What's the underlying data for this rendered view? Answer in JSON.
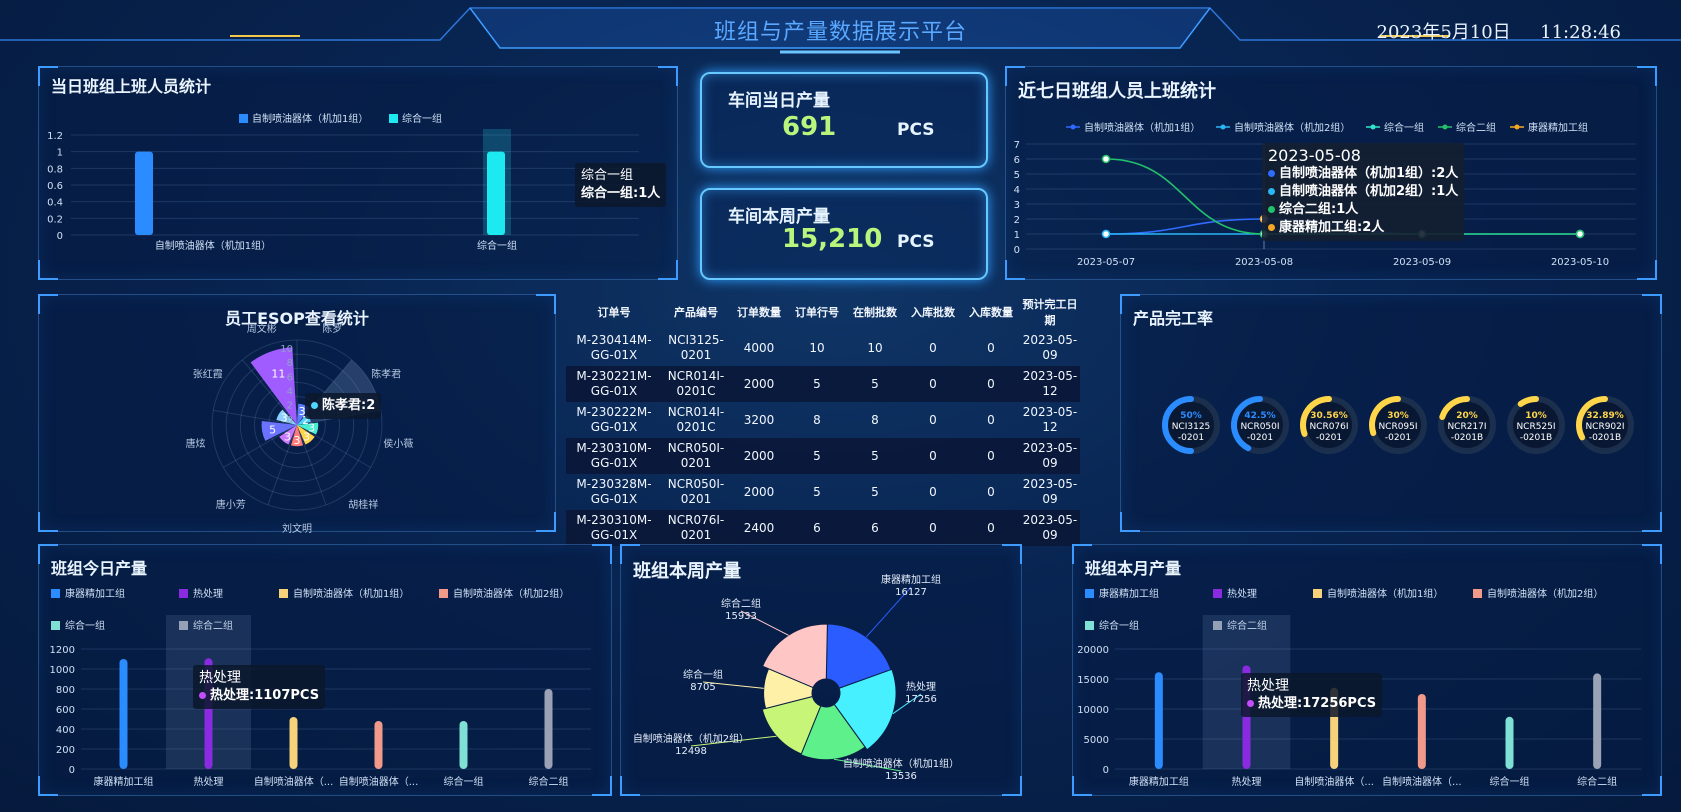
{
  "header": {
    "title": "班组与产量数据展示平台",
    "date": "2023年5月10日",
    "time": "11:28:46"
  },
  "attendance_today": {
    "title": "当日班组上班人员统计",
    "legend": [
      "自制喷油器体（机加1组）",
      "综合一组"
    ],
    "tooltip_title": "综合一组",
    "tooltip_line": "综合一组:1人",
    "chart_data": {
      "type": "bar",
      "categories": [
        "自制喷油器体（机加1组）",
        "综合一组"
      ],
      "series": [
        {
          "name": "自制喷油器体（机加1组）",
          "values": [
            1,
            null
          ]
        },
        {
          "name": "综合一组",
          "values": [
            null,
            1
          ]
        }
      ],
      "ylim": [
        0,
        1.2
      ],
      "yticks": [
        "0",
        "0.2",
        "0.4",
        "0.6",
        "0.8",
        "1",
        "1.2"
      ],
      "colors": [
        "#2a8cff",
        "#1de9f0"
      ]
    }
  },
  "kpi_today": {
    "label": "车间当日产量",
    "value": "691",
    "unit": "PCS"
  },
  "kpi_week": {
    "label": "车间本周产量",
    "value": "15,210",
    "unit": "PCS"
  },
  "attendance_7days": {
    "title": "近七日班组人员上班统计",
    "legend": [
      "自制喷油器体（机加1组）",
      "自制喷油器体（机加2组）",
      "综合一组",
      "综合二组",
      "康器精加工组"
    ],
    "tooltip_title": "2023-05-08",
    "tooltip_lines": [
      "自制喷油器体（机加1组）:2人",
      "自制喷油器体（机加2组）:1人",
      "综合二组:1人",
      "康器精加工组:2人"
    ],
    "chart_data": {
      "type": "line",
      "x": [
        "2023-05-07",
        "2023-05-08",
        "2023-05-09",
        "2023-05-10"
      ],
      "ylim": [
        0,
        7
      ],
      "yticks": [
        "0",
        "1",
        "2",
        "3",
        "4",
        "5",
        "6",
        "7"
      ],
      "series": [
        {
          "name": "自制喷油器体（机加1组）",
          "values": [
            1,
            2,
            1,
            1
          ],
          "color": "#2f6bff"
        },
        {
          "name": "自制喷油器体（机加2组）",
          "values": [
            1,
            1,
            1,
            1
          ],
          "color": "#29b6f6"
        },
        {
          "name": "综合一组",
          "values": [
            null,
            1,
            1,
            null
          ],
          "color": "#2ee6c9"
        },
        {
          "name": "综合二组",
          "values": [
            6,
            1,
            1,
            1
          ],
          "color": "#23c16b"
        },
        {
          "name": "康器精加工组",
          "values": [
            null,
            2,
            null,
            null
          ],
          "color": "#f5a623"
        }
      ]
    }
  },
  "esop": {
    "title": "员工ESOP查看统计",
    "tooltip": "陈孝君:2",
    "chart_data": {
      "type": "polar-bar",
      "categories": [
        "陈罗",
        "陈孝君",
        "侯小薇",
        "胡桂祥",
        "刘文明",
        "唐小芳",
        "唐炫",
        "张红霞",
        "周文彬"
      ],
      "values": [
        3,
        2,
        3,
        3,
        3,
        3,
        5,
        3,
        11
      ],
      "rticks": [
        "10",
        "8",
        "6",
        "4",
        "2",
        "0"
      ],
      "rmax": 12
    }
  },
  "orders": {
    "headers": [
      "订单号",
      "产品编号",
      "订单数量",
      "订单行号",
      "在制批数",
      "入库批数",
      "入库数量",
      "预计完工日期"
    ],
    "rows": [
      [
        "M-230414M-GG-01X",
        "NCI3125-0201",
        "4000",
        "10",
        "10",
        "0",
        "0",
        "2023-05-09"
      ],
      [
        "M-230221M-GG-01X",
        "NCR014I-0201C",
        "2000",
        "5",
        "5",
        "0",
        "0",
        "2023-05-12"
      ],
      [
        "M-230222M-GG-01X",
        "NCR014I-0201C",
        "3200",
        "8",
        "8",
        "0",
        "0",
        "2023-05-12"
      ],
      [
        "M-230310M-GG-01X",
        "NCR050I-0201",
        "2000",
        "5",
        "5",
        "0",
        "0",
        "2023-05-09"
      ],
      [
        "M-230328M-GG-01X",
        "NCR050I-0201",
        "2000",
        "5",
        "5",
        "0",
        "0",
        "2023-05-09"
      ],
      [
        "M-230310M-GG-01X",
        "NCR076I-0201",
        "2400",
        "6",
        "6",
        "0",
        "0",
        "2023-05-09"
      ]
    ]
  },
  "completion": {
    "title": "产品完工率",
    "chart_data": {
      "type": "gauge",
      "items": [
        {
          "label": "NCI3125-0201",
          "line1": "NCI3125",
          "line2": "-0201",
          "pct_text": "50%",
          "value": 50,
          "color": "#2a8cff"
        },
        {
          "label": "NCR050I-0201",
          "line1": "NCR050I",
          "line2": "-0201",
          "pct_text": "42.5%",
          "value": 42.5,
          "color": "#2a8cff"
        },
        {
          "label": "NCR076I-0201",
          "line1": "NCR076I",
          "line2": "-0201",
          "pct_text": "30.56%",
          "value": 30.56,
          "color": "#ffd54a"
        },
        {
          "label": "NCR095I-0201",
          "line1": "NCR095I",
          "line2": "-0201",
          "pct_text": "30%",
          "value": 30,
          "color": "#ffd54a"
        },
        {
          "label": "NCR217I-0201B",
          "line1": "NCR217I",
          "line2": "-0201B",
          "pct_text": "20%",
          "value": 20,
          "color": "#ffd54a"
        },
        {
          "label": "NCR525I-0201B",
          "line1": "NCR525I",
          "line2": "-0201B",
          "pct_text": "10%",
          "value": 10,
          "color": "#ffd54a"
        },
        {
          "label": "NCR902I-0201B",
          "line1": "NCR902I",
          "line2": "-0201B",
          "pct_text": "32.89%",
          "value": 32.89,
          "color": "#ffd54a"
        }
      ]
    }
  },
  "today_output": {
    "title": "班组今日产量",
    "legend": [
      {
        "label": "康器精加工组",
        "color": "#2a8cff"
      },
      {
        "label": "热处理",
        "color": "#8a2be2"
      },
      {
        "label": "自制喷油器体（机加1组）",
        "color": "#f6d27a"
      },
      {
        "label": "自制喷油器体（机加2组）",
        "color": "#f29a8a"
      },
      {
        "label": "综合一组",
        "color": "#7fe0d6"
      },
      {
        "label": "综合二组",
        "color": "#9aa3b5"
      }
    ],
    "tooltip_title": "热处理",
    "tooltip_line": "热处理:1107PCS",
    "chart_data": {
      "type": "bar",
      "categories": [
        "康器精加工组",
        "热处理",
        "自制喷油器体（...",
        "自制喷油器体（...",
        "综合一组",
        "综合二组"
      ],
      "values": [
        1100,
        1107,
        520,
        480,
        480,
        800
      ],
      "ylim": [
        0,
        1200
      ],
      "yticks": [
        "0",
        "200",
        "400",
        "600",
        "800",
        "1000",
        "1200"
      ],
      "colors": [
        "#2a8cff",
        "#8a2be2",
        "#f6d27a",
        "#f29a8a",
        "#7fe0d6",
        "#9aa3b5"
      ]
    }
  },
  "week_output": {
    "title": "班组本周产量",
    "chart_data": {
      "type": "pie",
      "slices": [
        {
          "name": "康器精加工组",
          "value": 16127,
          "color": "#2a5cff"
        },
        {
          "name": "热处理",
          "value": 17256,
          "color": "#46f0ff"
        },
        {
          "name": "自制喷油器体（机加1组）",
          "value": 13536,
          "color": "#5ef08a"
        },
        {
          "name": "自制喷油器体（机加2组）",
          "value": 12498,
          "color": "#c6f578"
        },
        {
          "name": "综合一组",
          "value": 8705,
          "color": "#fff0a8"
        },
        {
          "name": "综合二组",
          "value": 15933,
          "color": "#ffc6c6"
        }
      ]
    }
  },
  "month_output": {
    "title": "班组本月产量",
    "legend": [
      {
        "label": "康器精加工组",
        "color": "#2a8cff"
      },
      {
        "label": "热处理",
        "color": "#8a2be2"
      },
      {
        "label": "自制喷油器体（机加1组）",
        "color": "#f6d27a"
      },
      {
        "label": "自制喷油器体（机加2组）",
        "color": "#f29a8a"
      },
      {
        "label": "综合一组",
        "color": "#7fe0d6"
      },
      {
        "label": "综合二组",
        "color": "#9aa3b5"
      }
    ],
    "tooltip_title": "热处理",
    "tooltip_line": "热处理:17256PCS",
    "chart_data": {
      "type": "bar",
      "categories": [
        "康器精加工组",
        "热处理",
        "自制喷油器体（...",
        "自制喷油器体（...",
        "综合一组",
        "综合二组"
      ],
      "values": [
        16127,
        17256,
        13536,
        12498,
        8705,
        15933
      ],
      "ylim": [
        0,
        20000
      ],
      "yticks": [
        "0",
        "5000",
        "10000",
        "15000",
        "20000"
      ],
      "colors": [
        "#2a8cff",
        "#8a2be2",
        "#f6d27a",
        "#f29a8a",
        "#7fe0d6",
        "#9aa3b5"
      ]
    }
  }
}
